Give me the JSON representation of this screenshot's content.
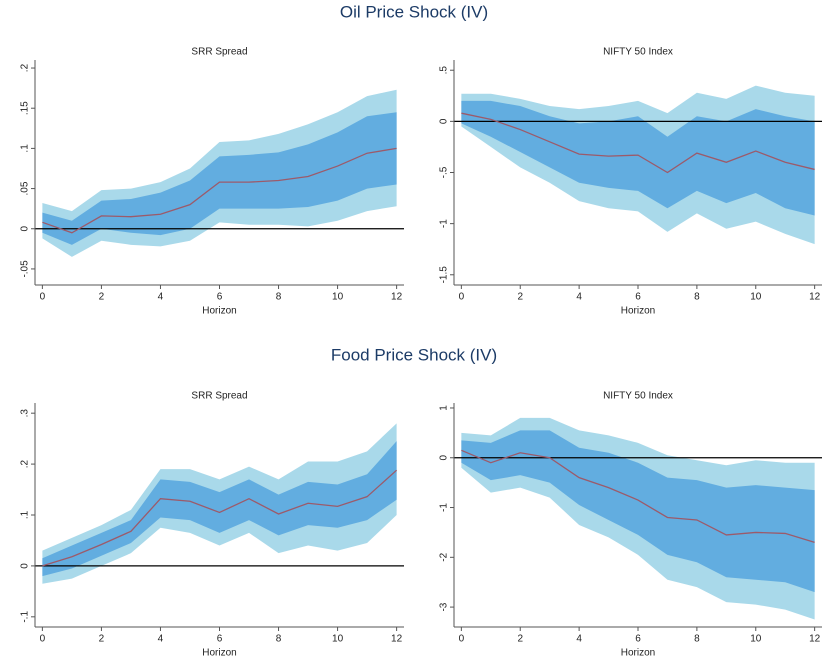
{
  "section_titles": [
    "Oil Price Shock (IV)",
    "Food Price Shock (IV)"
  ],
  "chart_data": [
    {
      "type": "line",
      "title": "SRR Spread",
      "xlabel": "Horizon",
      "x": [
        0,
        1,
        2,
        3,
        4,
        5,
        6,
        7,
        8,
        9,
        10,
        11,
        12
      ],
      "xlim": [
        -0.25,
        12.25
      ],
      "xticks": [
        0,
        2,
        4,
        6,
        8,
        10,
        12
      ],
      "ylim": [
        -0.07,
        0.21
      ],
      "yticks": [
        {
          "value": -0.05,
          "label": "-.05"
        },
        0,
        {
          "value": 0.05,
          "label": ".05"
        },
        {
          "value": 0.1,
          "label": ".1"
        },
        {
          "value": 0.15,
          "label": ".15"
        },
        {
          "value": 0.2,
          "label": ".2"
        }
      ],
      "hline": 0,
      "bands": [
        {
          "color": "#a9d9ea",
          "upper": [
            0.032,
            0.022,
            0.048,
            0.05,
            0.058,
            0.075,
            0.108,
            0.11,
            0.118,
            0.13,
            0.145,
            0.165,
            0.173
          ],
          "lower": [
            -0.012,
            -0.035,
            -0.015,
            -0.02,
            -0.022,
            -0.015,
            0.008,
            0.005,
            0.005,
            0.003,
            0.01,
            0.022,
            0.028
          ]
        },
        {
          "color": "#62ade0",
          "upper": [
            0.02,
            0.01,
            0.035,
            0.037,
            0.045,
            0.06,
            0.09,
            0.092,
            0.095,
            0.105,
            0.12,
            0.14,
            0.145
          ],
          "lower": [
            -0.005,
            -0.02,
            0,
            -0.005,
            -0.008,
            0,
            0.025,
            0.025,
            0.025,
            0.027,
            0.035,
            0.05,
            0.055
          ]
        }
      ],
      "series": [
        {
          "color": "#9c5a6a",
          "values": [
            0.008,
            -0.005,
            0.016,
            0.015,
            0.018,
            0.03,
            0.058,
            0.058,
            0.06,
            0.065,
            0.078,
            0.094,
            0.1
          ]
        }
      ]
    },
    {
      "type": "line",
      "title": "NIFTY 50 Index",
      "xlabel": "Horizon",
      "x": [
        0,
        1,
        2,
        3,
        4,
        5,
        6,
        7,
        8,
        9,
        10,
        11,
        12
      ],
      "xlim": [
        -0.25,
        12.25
      ],
      "xticks": [
        0,
        2,
        4,
        6,
        8,
        10,
        12
      ],
      "ylim": [
        -1.6,
        0.6
      ],
      "yticks": [
        {
          "value": -1.5,
          "label": "-1.5"
        },
        -1,
        {
          "value": -0.5,
          "label": "-.5"
        },
        0,
        {
          "value": 0.5,
          "label": ".5"
        }
      ],
      "hline": 0,
      "bands": [
        {
          "color": "#a9d9ea",
          "upper": [
            0.27,
            0.27,
            0.22,
            0.15,
            0.12,
            0.15,
            0.2,
            0.08,
            0.28,
            0.22,
            0.35,
            0.28,
            0.25
          ],
          "lower": [
            -0.05,
            -0.25,
            -0.45,
            -0.6,
            -0.78,
            -0.85,
            -0.88,
            -1.08,
            -0.9,
            -1.05,
            -0.98,
            -1.1,
            -1.2
          ]
        },
        {
          "color": "#62ade0",
          "upper": [
            0.2,
            0.2,
            0.15,
            0.05,
            -0.02,
            0,
            0.05,
            -0.15,
            0.05,
            0,
            0.12,
            0.05,
            0
          ],
          "lower": [
            -0.02,
            -0.15,
            -0.3,
            -0.45,
            -0.6,
            -0.65,
            -0.68,
            -0.85,
            -0.68,
            -0.8,
            -0.7,
            -0.85,
            -0.92
          ]
        }
      ],
      "series": [
        {
          "color": "#9c5a6a",
          "values": [
            0.08,
            0.02,
            -0.08,
            -0.2,
            -0.32,
            -0.34,
            -0.33,
            -0.5,
            -0.31,
            -0.4,
            -0.29,
            -0.4,
            -0.47
          ]
        }
      ]
    },
    {
      "type": "line",
      "title": "SRR Spread",
      "xlabel": "Horizon",
      "x": [
        0,
        1,
        2,
        3,
        4,
        5,
        6,
        7,
        8,
        9,
        10,
        11,
        12
      ],
      "xlim": [
        -0.25,
        12.25
      ],
      "xticks": [
        0,
        2,
        4,
        6,
        8,
        10,
        12
      ],
      "ylim": [
        -0.12,
        0.32
      ],
      "yticks": [
        {
          "value": -0.1,
          "label": "-.1"
        },
        0,
        {
          "value": 0.1,
          "label": ".1"
        },
        {
          "value": 0.2,
          "label": ".2"
        },
        {
          "value": 0.3,
          "label": ".3"
        }
      ],
      "hline": 0,
      "bands": [
        {
          "color": "#a9d9ea",
          "upper": [
            0.03,
            0.055,
            0.08,
            0.11,
            0.19,
            0.19,
            0.17,
            0.195,
            0.17,
            0.205,
            0.205,
            0.225,
            0.28
          ],
          "lower": [
            -0.035,
            -0.025,
            0,
            0.025,
            0.075,
            0.065,
            0.04,
            0.065,
            0.025,
            0.04,
            0.03,
            0.045,
            0.1
          ]
        },
        {
          "color": "#62ade0",
          "upper": [
            0.015,
            0.04,
            0.065,
            0.09,
            0.17,
            0.165,
            0.145,
            0.17,
            0.14,
            0.165,
            0.16,
            0.18,
            0.245
          ],
          "lower": [
            -0.02,
            -0.005,
            0.02,
            0.045,
            0.095,
            0.09,
            0.065,
            0.09,
            0.06,
            0.08,
            0.075,
            0.09,
            0.13
          ]
        }
      ],
      "series": [
        {
          "color": "#9c5a6a",
          "values": [
            0,
            0.018,
            0.042,
            0.068,
            0.132,
            0.127,
            0.105,
            0.132,
            0.102,
            0.123,
            0.117,
            0.136,
            0.188
          ]
        }
      ]
    },
    {
      "type": "line",
      "title": "NIFTY 50 Index",
      "xlabel": "Horizon",
      "x": [
        0,
        1,
        2,
        3,
        4,
        5,
        6,
        7,
        8,
        9,
        10,
        11,
        12
      ],
      "xlim": [
        -0.25,
        12.25
      ],
      "xticks": [
        0,
        2,
        4,
        6,
        8,
        10,
        12
      ],
      "ylim": [
        -3.4,
        1.1
      ],
      "yticks": [
        -3,
        -2,
        -1,
        0,
        1
      ],
      "hline": 0,
      "bands": [
        {
          "color": "#a9d9ea",
          "upper": [
            0.5,
            0.45,
            0.8,
            0.8,
            0.55,
            0.45,
            0.3,
            0.05,
            -0.05,
            -0.15,
            -0.05,
            -0.1,
            -0.1
          ],
          "lower": [
            -0.2,
            -0.7,
            -0.6,
            -0.8,
            -1.35,
            -1.6,
            -1.95,
            -2.45,
            -2.6,
            -2.9,
            -2.95,
            -3.05,
            -3.25
          ]
        },
        {
          "color": "#62ade0",
          "upper": [
            0.35,
            0.3,
            0.55,
            0.55,
            0.2,
            0.1,
            -0.1,
            -0.4,
            -0.45,
            -0.6,
            -0.55,
            -0.6,
            -0.65
          ],
          "lower": [
            -0.1,
            -0.45,
            -0.35,
            -0.5,
            -0.95,
            -1.25,
            -1.55,
            -1.95,
            -2.1,
            -2.4,
            -2.45,
            -2.5,
            -2.7
          ]
        }
      ],
      "series": [
        {
          "color": "#9c5a6a",
          "values": [
            0.15,
            -0.1,
            0.1,
            0,
            -0.4,
            -0.6,
            -0.85,
            -1.2,
            -1.25,
            -1.55,
            -1.5,
            -1.52,
            -1.7
          ]
        }
      ]
    }
  ]
}
